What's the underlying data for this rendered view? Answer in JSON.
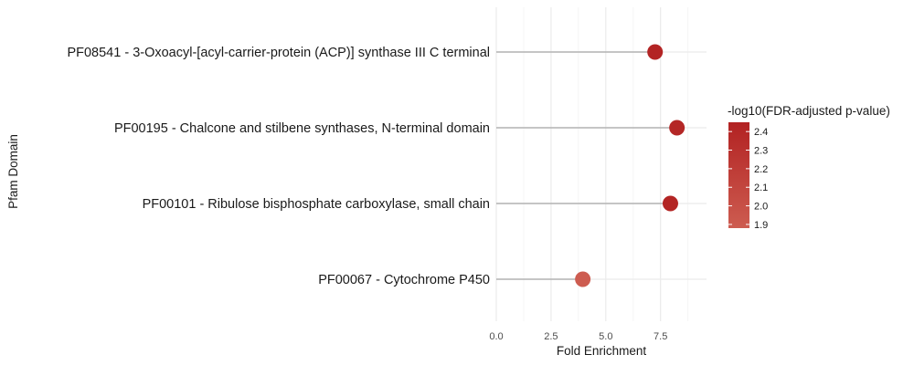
{
  "chart_data": {
    "type": "lollipop",
    "xlabel": "Fold Enrichment",
    "ylabel": "Pfam Domain",
    "xlim": [
      0,
      9.6
    ],
    "x_ticks": [
      0,
      2.5,
      5,
      7.5
    ],
    "x_tick_labels": [
      "0.0",
      "2.5",
      "5.0",
      "7.5"
    ],
    "grid": true,
    "legend_position": "right",
    "categories": [
      "PF08541 - 3-Oxoacyl-[acyl-carrier-protein (ACP)] synthase III C terminal",
      "PF00195 - Chalcone and stilbene synthases, N-terminal domain",
      "PF00101 - Ribulose bisphosphate carboxylase, small chain",
      "PF00067 - Cytochrome P450"
    ],
    "values": [
      7.25,
      8.25,
      7.95,
      3.95
    ],
    "color_values": [
      2.43,
      2.4,
      2.42,
      1.88
    ],
    "color_scale": {
      "title": "-log10(FDR-adjusted p-value)",
      "min": 1.88,
      "max": 2.45,
      "low_color": "#cd5c50",
      "high_color": "#b22222",
      "ticks": [
        1.9,
        2.0,
        2.1,
        2.2,
        2.3,
        2.4
      ],
      "tick_labels": [
        "1.9",
        "2.0",
        "2.1",
        "2.2",
        "2.3",
        "2.4"
      ]
    },
    "colors": {
      "stem": "#b3b3b3",
      "grid_major": "#ebebeb",
      "grid_minor": "#f5f5f5"
    }
  }
}
